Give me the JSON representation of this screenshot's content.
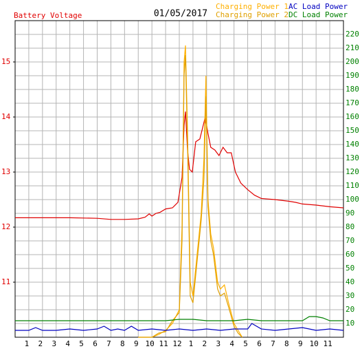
{
  "chart_data": {
    "type": "line",
    "title": "01/05/2017",
    "ylabel": "Battery Voltage",
    "xlim": [
      0,
      24
    ],
    "xticks": [
      1,
      2,
      3,
      4,
      5,
      6,
      7,
      8,
      9,
      10,
      11,
      12,
      {
        "value": 13,
        "label": "1"
      },
      {
        "value": 14,
        "label": "2"
      },
      {
        "value": 15,
        "label": "3"
      },
      {
        "value": 16,
        "label": "4"
      },
      {
        "value": 17,
        "label": "5"
      },
      {
        "value": 18,
        "label": "6"
      },
      {
        "value": 19,
        "label": "7"
      },
      {
        "value": 20,
        "label": "8"
      },
      {
        "value": 21,
        "label": "9"
      },
      {
        "value": 22,
        "label": "10"
      },
      {
        "value": 23,
        "label": "11"
      }
    ],
    "ylim": [
      10,
      15.75
    ],
    "yticks": [
      11,
      12,
      13,
      14,
      15
    ],
    "y2lim": [
      0,
      230
    ],
    "y2ticks": [
      10,
      20,
      30,
      40,
      50,
      60,
      70,
      80,
      90,
      100,
      110,
      120,
      130,
      140,
      150,
      160,
      170,
      180,
      190,
      200,
      210,
      220
    ],
    "grid": true,
    "series": [
      {
        "name": "Battery Voltage",
        "color": "#e00000",
        "x": [
          0,
          2,
          4,
          6,
          7,
          8,
          9,
          9.5,
          9.8,
          10,
          10.3,
          10.6,
          11,
          11.5,
          11.9,
          12.2,
          12.35,
          12.45,
          12.6,
          12.75,
          12.95,
          13.2,
          13.5,
          13.7,
          13.9,
          14.1,
          14.3,
          14.6,
          14.9,
          15.2,
          15.5,
          15.8,
          16.1,
          16.5,
          17,
          17.5,
          18,
          19,
          20,
          20.5,
          21,
          22,
          23,
          24
        ],
        "values": [
          12.17,
          12.17,
          12.17,
          12.16,
          12.14,
          12.14,
          12.15,
          12.18,
          12.24,
          12.2,
          12.25,
          12.27,
          12.33,
          12.35,
          12.45,
          12.9,
          13.85,
          14.1,
          13.4,
          13.05,
          13.0,
          13.55,
          13.6,
          13.8,
          14.0,
          13.7,
          13.45,
          13.4,
          13.3,
          13.45,
          13.35,
          13.35,
          13.0,
          12.8,
          12.68,
          12.58,
          12.52,
          12.5,
          12.47,
          12.45,
          12.42,
          12.4,
          12.37,
          12.35
        ]
      },
      {
        "name": "Charging Power 1",
        "color": "#ffb000",
        "axis": "y2",
        "x": [
          9,
          9.5,
          10,
          10.5,
          11,
          11.5,
          12,
          12.2,
          12.35,
          12.45,
          12.6,
          12.8,
          13.0,
          13.3,
          13.6,
          13.8,
          13.95,
          14.1,
          14.3,
          14.5,
          14.8,
          15.0,
          15.3,
          15.6,
          16.0,
          16.3,
          16.6
        ],
        "values": [
          0,
          0,
          0,
          2,
          5,
          10,
          20,
          80,
          200,
          212,
          150,
          40,
          30,
          60,
          90,
          130,
          190,
          100,
          75,
          65,
          40,
          35,
          38,
          25,
          10,
          5,
          0
        ]
      },
      {
        "name": "Charging Power 2",
        "color": "#e0a000",
        "axis": "y2",
        "x": [
          9,
          9.5,
          10,
          10.5,
          11,
          11.5,
          12,
          12.2,
          12.35,
          12.45,
          12.6,
          12.8,
          13.0,
          13.3,
          13.6,
          13.8,
          13.95,
          14.1,
          14.3,
          14.5,
          14.8,
          15.0,
          15.3,
          15.6,
          16.0,
          16.3,
          16.6
        ],
        "values": [
          0,
          0,
          0,
          3,
          4,
          12,
          18,
          70,
          190,
          205,
          140,
          30,
          25,
          55,
          85,
          115,
          175,
          95,
          70,
          60,
          35,
          30,
          32,
          22,
          8,
          3,
          0
        ]
      },
      {
        "name": "AC Load Power",
        "color": "#0000c0",
        "axis": "y2",
        "x": [
          0,
          1,
          1.5,
          2,
          3,
          4,
          5,
          6,
          6.5,
          7,
          7.5,
          8,
          8.5,
          9,
          10,
          11,
          12,
          13,
          14,
          15,
          16,
          17,
          17.3,
          18,
          19,
          20,
          21,
          22,
          23,
          24
        ],
        "values": [
          5,
          5,
          7,
          5,
          5,
          6,
          5,
          6,
          8,
          5,
          6,
          5,
          8,
          5,
          6,
          5,
          6,
          5,
          6,
          5,
          6,
          6,
          10,
          6,
          5,
          6,
          7,
          5,
          6,
          5
        ]
      },
      {
        "name": "DC Load Power",
        "color": "#008000",
        "axis": "y2",
        "x": [
          0,
          4,
          8,
          11,
          12,
          13,
          14,
          16,
          17,
          18,
          20,
          21,
          21.5,
          22,
          22.5,
          23,
          24
        ],
        "values": [
          12,
          12,
          12,
          12,
          13,
          13,
          12,
          12,
          13,
          12,
          12,
          12,
          15,
          15,
          14,
          12,
          12
        ]
      }
    ]
  }
}
